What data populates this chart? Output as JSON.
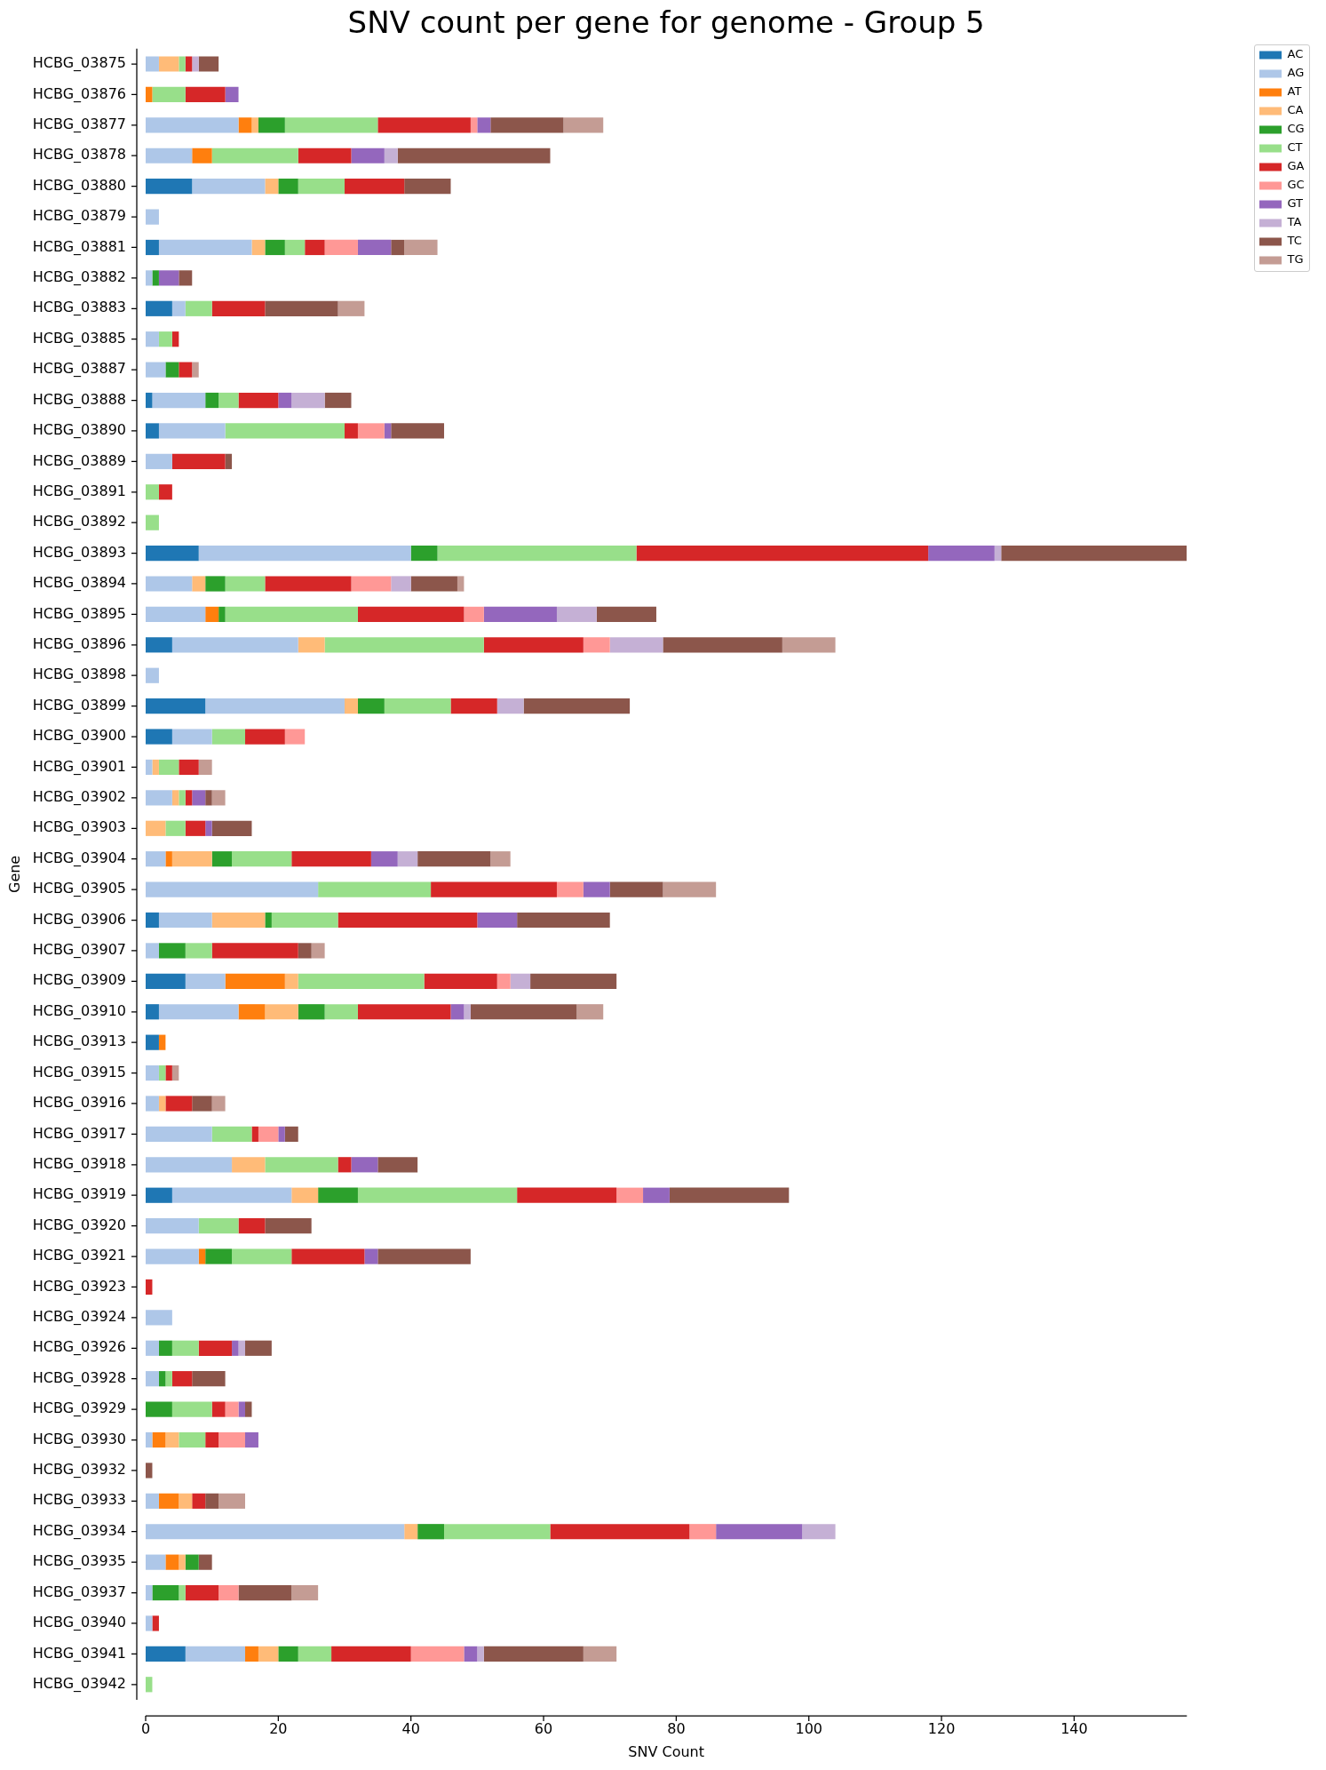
{
  "chart_data": {
    "type": "bar",
    "orientation": "horizontal",
    "stacked": true,
    "title": "SNV count per gene for genome - Group 5",
    "xlabel": "SNV Count",
    "ylabel": "Gene",
    "categories": [
      "HCBG_03875",
      "HCBG_03876",
      "HCBG_03877",
      "HCBG_03878",
      "HCBG_03880",
      "HCBG_03879",
      "HCBG_03881",
      "HCBG_03882",
      "HCBG_03883",
      "HCBG_03885",
      "HCBG_03887",
      "HCBG_03888",
      "HCBG_03890",
      "HCBG_03889",
      "HCBG_03891",
      "HCBG_03892",
      "HCBG_03893",
      "HCBG_03894",
      "HCBG_03895",
      "HCBG_03896",
      "HCBG_03898",
      "HCBG_03899",
      "HCBG_03900",
      "HCBG_03901",
      "HCBG_03902",
      "HCBG_03903",
      "HCBG_03904",
      "HCBG_03905",
      "HCBG_03906",
      "HCBG_03907",
      "HCBG_03909",
      "HCBG_03910",
      "HCBG_03913",
      "HCBG_03915",
      "HCBG_03916",
      "HCBG_03917",
      "HCBG_03918",
      "HCBG_03919",
      "HCBG_03920",
      "HCBG_03921",
      "HCBG_03923",
      "HCBG_03924",
      "HCBG_03926",
      "HCBG_03928",
      "HCBG_03929",
      "HCBG_03930",
      "HCBG_03932",
      "HCBG_03933",
      "HCBG_03934",
      "HCBG_03935",
      "HCBG_03937",
      "HCBG_03940",
      "HCBG_03941",
      "HCBG_03942"
    ],
    "series": [
      {
        "name": "AC",
        "color": "#1f77b4",
        "values": [
          0,
          0,
          0,
          0,
          7,
          0,
          2,
          0,
          4,
          0,
          0,
          1,
          2,
          0,
          0,
          0,
          8,
          0,
          0,
          4,
          0,
          9,
          4,
          0,
          0,
          0,
          0,
          0,
          2,
          0,
          6,
          2,
          2,
          0,
          0,
          0,
          0,
          4,
          0,
          0,
          0,
          0,
          0,
          0,
          0,
          0,
          0,
          0,
          0,
          0,
          0,
          0,
          6,
          0
        ]
      },
      {
        "name": "AG",
        "color": "#aec7e8",
        "values": [
          2,
          0,
          14,
          7,
          11,
          2,
          14,
          1,
          2,
          2,
          3,
          8,
          10,
          4,
          0,
          0,
          32,
          7,
          9,
          19,
          2,
          21,
          6,
          1,
          4,
          0,
          3,
          26,
          8,
          2,
          6,
          12,
          0,
          2,
          2,
          10,
          13,
          18,
          8,
          8,
          0,
          4,
          2,
          2,
          0,
          1,
          0,
          2,
          39,
          3,
          1,
          1,
          9,
          0
        ]
      },
      {
        "name": "AT",
        "color": "#ff7f0e",
        "values": [
          0,
          1,
          2,
          3,
          0,
          0,
          0,
          0,
          0,
          0,
          0,
          0,
          0,
          0,
          0,
          0,
          0,
          0,
          2,
          0,
          0,
          0,
          0,
          0,
          0,
          0,
          1,
          0,
          0,
          0,
          9,
          4,
          1,
          0,
          0,
          0,
          0,
          0,
          0,
          1,
          0,
          0,
          0,
          0,
          0,
          2,
          0,
          3,
          0,
          2,
          0,
          0,
          2,
          0
        ]
      },
      {
        "name": "CA",
        "color": "#ffbb78",
        "values": [
          3,
          0,
          1,
          0,
          2,
          0,
          2,
          0,
          0,
          0,
          0,
          0,
          0,
          0,
          0,
          0,
          0,
          2,
          0,
          4,
          0,
          2,
          0,
          1,
          1,
          3,
          6,
          0,
          8,
          0,
          2,
          5,
          0,
          0,
          1,
          0,
          5,
          4,
          0,
          0,
          0,
          0,
          0,
          0,
          0,
          2,
          0,
          2,
          2,
          1,
          0,
          0,
          3,
          0
        ]
      },
      {
        "name": "CG",
        "color": "#2ca02c",
        "values": [
          0,
          0,
          4,
          0,
          3,
          0,
          3,
          1,
          0,
          0,
          2,
          2,
          0,
          0,
          0,
          0,
          4,
          3,
          1,
          0,
          0,
          4,
          0,
          0,
          0,
          0,
          3,
          0,
          1,
          4,
          0,
          4,
          0,
          0,
          0,
          0,
          0,
          6,
          0,
          4,
          0,
          0,
          2,
          1,
          4,
          0,
          0,
          0,
          4,
          2,
          4,
          0,
          3,
          0
        ]
      },
      {
        "name": "CT",
        "color": "#98df8a",
        "values": [
          1,
          5,
          14,
          13,
          7,
          0,
          3,
          0,
          4,
          2,
          0,
          3,
          18,
          0,
          2,
          2,
          30,
          6,
          20,
          24,
          0,
          10,
          5,
          3,
          1,
          3,
          9,
          17,
          10,
          4,
          19,
          5,
          0,
          1,
          0,
          6,
          11,
          24,
          6,
          9,
          0,
          0,
          4,
          1,
          6,
          4,
          0,
          0,
          16,
          0,
          1,
          0,
          5,
          1
        ]
      },
      {
        "name": "GA",
        "color": "#d62728",
        "values": [
          1,
          6,
          14,
          8,
          9,
          0,
          3,
          0,
          8,
          1,
          2,
          6,
          2,
          8,
          2,
          0,
          44,
          13,
          16,
          15,
          0,
          7,
          6,
          3,
          1,
          3,
          12,
          19,
          21,
          13,
          11,
          14,
          0,
          1,
          4,
          1,
          2,
          15,
          4,
          11,
          1,
          0,
          5,
          3,
          2,
          2,
          0,
          2,
          21,
          0,
          5,
          1,
          12,
          0
        ]
      },
      {
        "name": "GC",
        "color": "#ff9896",
        "values": [
          0,
          0,
          1,
          0,
          0,
          0,
          5,
          0,
          0,
          0,
          0,
          0,
          4,
          0,
          0,
          0,
          0,
          6,
          3,
          4,
          0,
          0,
          3,
          0,
          0,
          0,
          0,
          4,
          0,
          0,
          2,
          0,
          0,
          0,
          0,
          3,
          0,
          4,
          0,
          0,
          0,
          0,
          0,
          0,
          2,
          4,
          0,
          0,
          4,
          0,
          3,
          0,
          8,
          0
        ]
      },
      {
        "name": "GT",
        "color": "#9467bd",
        "values": [
          0,
          2,
          2,
          5,
          0,
          0,
          5,
          3,
          0,
          0,
          0,
          2,
          1,
          0,
          0,
          0,
          10,
          0,
          11,
          0,
          0,
          0,
          0,
          0,
          2,
          1,
          4,
          4,
          6,
          0,
          0,
          2,
          0,
          0,
          0,
          1,
          4,
          4,
          0,
          2,
          0,
          0,
          1,
          0,
          1,
          2,
          0,
          0,
          13,
          0,
          0,
          0,
          2,
          0
        ]
      },
      {
        "name": "TA",
        "color": "#c5b0d5",
        "values": [
          1,
          0,
          0,
          2,
          0,
          0,
          0,
          0,
          0,
          0,
          0,
          5,
          0,
          0,
          0,
          0,
          1,
          3,
          6,
          8,
          0,
          4,
          0,
          0,
          0,
          0,
          3,
          0,
          0,
          0,
          3,
          1,
          0,
          0,
          0,
          0,
          0,
          0,
          0,
          0,
          0,
          0,
          1,
          0,
          0,
          0,
          0,
          0,
          5,
          0,
          0,
          0,
          1,
          0
        ]
      },
      {
        "name": "TC",
        "color": "#8c564b",
        "values": [
          3,
          0,
          11,
          23,
          7,
          0,
          2,
          2,
          11,
          0,
          0,
          4,
          8,
          1,
          0,
          0,
          28,
          7,
          9,
          18,
          0,
          16,
          0,
          0,
          1,
          6,
          11,
          8,
          14,
          2,
          13,
          16,
          0,
          0,
          3,
          2,
          6,
          18,
          7,
          14,
          0,
          0,
          4,
          5,
          1,
          0,
          1,
          2,
          0,
          2,
          8,
          0,
          15,
          0
        ]
      },
      {
        "name": "TG",
        "color": "#c49c94",
        "values": [
          0,
          0,
          6,
          0,
          0,
          0,
          5,
          0,
          4,
          0,
          1,
          0,
          0,
          0,
          0,
          0,
          0,
          1,
          0,
          8,
          0,
          0,
          0,
          2,
          2,
          0,
          3,
          8,
          0,
          2,
          0,
          4,
          0,
          1,
          2,
          0,
          0,
          0,
          0,
          0,
          0,
          0,
          0,
          0,
          0,
          0,
          0,
          4,
          0,
          0,
          4,
          0,
          5,
          0
        ]
      }
    ],
    "xlim": [
      0,
      157
    ],
    "xticks": [
      0,
      20,
      40,
      60,
      80,
      100,
      120,
      140
    ],
    "legend": "top right"
  }
}
